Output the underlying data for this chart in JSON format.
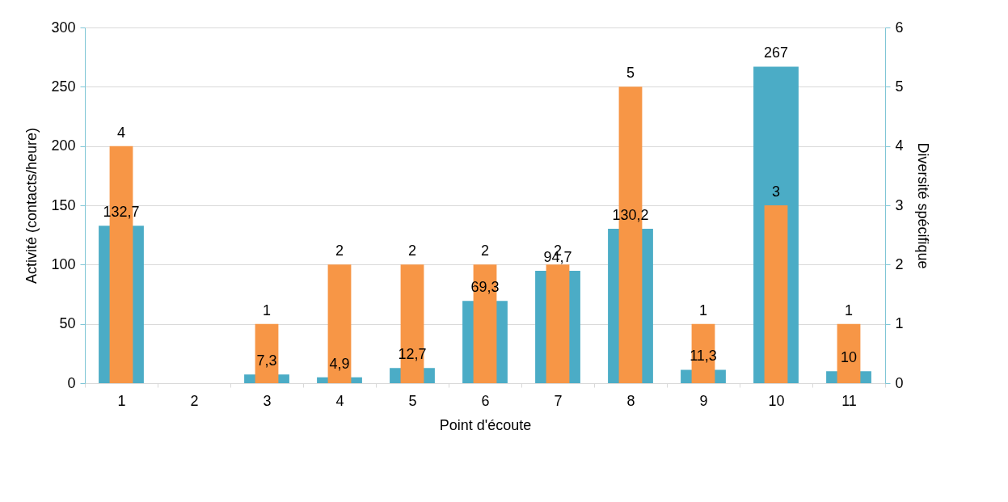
{
  "chart_data": {
    "type": "bar",
    "xlabel": "Point d'écoute",
    "ylabel": "Activité  (contacts/heure)",
    "y2label": "Diversité spécifique",
    "categories": [
      "1",
      "2",
      "3",
      "4",
      "5",
      "6",
      "7",
      "8",
      "9",
      "10",
      "11"
    ],
    "series": [
      {
        "color": "#4bacc6",
        "values": [
          132.7,
          null,
          7.3,
          4.9,
          12.7,
          69.3,
          94.7,
          130.2,
          11.3,
          267,
          10
        ],
        "value_labels": [
          "132,7",
          null,
          "7,3",
          "4,9",
          "12,7",
          "69,3",
          "94,7",
          "130,2",
          "11,3",
          "267",
          "10"
        ]
      },
      {
        "color": "#f79646",
        "axis": "y2",
        "values": [
          4,
          null,
          1,
          2,
          2,
          2,
          2,
          5,
          1,
          3,
          1
        ],
        "value_labels": [
          "4",
          null,
          "1",
          "2",
          "2",
          "2",
          "2",
          "5",
          "1",
          "3",
          "1"
        ]
      }
    ],
    "ylim": [
      0,
      300
    ],
    "yticks": [
      0,
      50,
      100,
      150,
      200,
      250,
      300
    ],
    "y2lim": [
      0,
      6
    ],
    "y2ticks": [
      0,
      1,
      2,
      3,
      4,
      5,
      6
    ],
    "grid": "y"
  }
}
